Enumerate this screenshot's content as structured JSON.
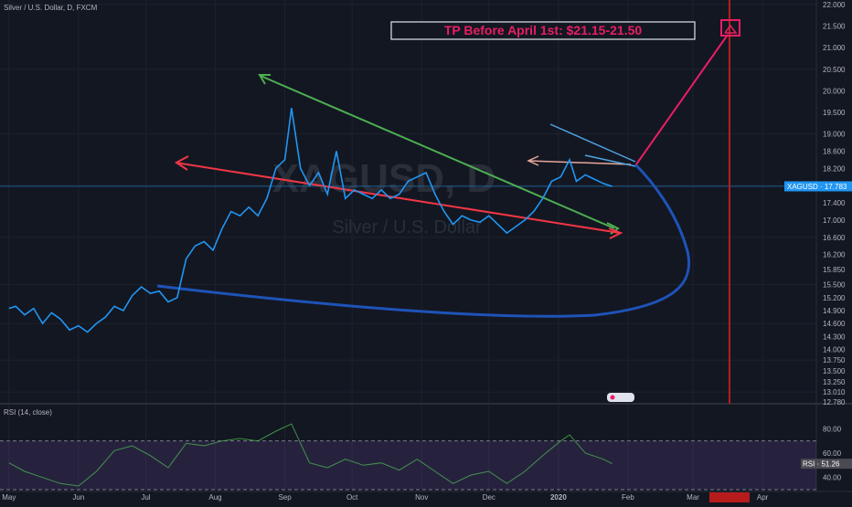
{
  "header": {
    "symbol_title": "Silver / U.S. Dollar, D, FXCM",
    "rsi_title": "RSI (14, close)"
  },
  "watermark": {
    "symbol": "XAGUSD, D",
    "name": "Silver / U.S. Dollar"
  },
  "annotation": {
    "tp_text": "TP Before April 1st: $21.15-21.50"
  },
  "colors": {
    "background": "#131722",
    "price_line": "#2196f3",
    "green_trendline": "#4caf50",
    "red_trendline": "#f23645",
    "projection_curve": "#1e53b8",
    "projection_arrow": "#e91e63",
    "rsi_line": "#4caf50",
    "rsi_band": "#7e57c2"
  },
  "chart_data": [
    {
      "type": "line",
      "title": "Silver / U.S. Dollar, D, FXCM",
      "xlabel": "",
      "ylabel": "",
      "ylim": [
        12.78,
        22.0
      ],
      "y_ticks": [
        22.0,
        21.5,
        21.0,
        20.5,
        20.0,
        19.5,
        19.0,
        18.6,
        18.2,
        17.8,
        17.4,
        17.0,
        16.6,
        16.2,
        15.85,
        15.5,
        15.2,
        14.9,
        14.6,
        14.3,
        14.0,
        13.75,
        13.5,
        13.25,
        13.01,
        12.78
      ],
      "y_tick_labels": [
        "22.000",
        "21.500",
        "21.000",
        "20.500",
        "20.000",
        "19.500",
        "19.000",
        "18.600",
        "18.200",
        "17.800",
        "17.400",
        "17.000",
        "16.600",
        "16.200",
        "15.850",
        "15.500",
        "15.200",
        "14.900",
        "14.600",
        "14.300",
        "14.000",
        "13.750",
        "13.500",
        "13.250",
        "13.010",
        "12.780"
      ],
      "x_tick_labels": [
        "May",
        "Jun",
        "Jul",
        "Aug",
        "Sep",
        "Oct",
        "Nov",
        "Dec",
        "2020",
        "Feb",
        "Mar",
        "16 Mar '20",
        "Apr"
      ],
      "current_price_label": "XAGUSD · 17.783",
      "current_price": 17.783,
      "series": [
        {
          "values": [
            {
              "x": "2019-05-01",
              "y": 14.95
            },
            {
              "x": "2019-05-04",
              "y": 15.0
            },
            {
              "x": "2019-05-08",
              "y": 14.8
            },
            {
              "x": "2019-05-12",
              "y": 14.95
            },
            {
              "x": "2019-05-16",
              "y": 14.6
            },
            {
              "x": "2019-05-20",
              "y": 14.85
            },
            {
              "x": "2019-05-24",
              "y": 14.7
            },
            {
              "x": "2019-05-28",
              "y": 14.45
            },
            {
              "x": "2019-06-01",
              "y": 14.55
            },
            {
              "x": "2019-06-05",
              "y": 14.4
            },
            {
              "x": "2019-06-09",
              "y": 14.6
            },
            {
              "x": "2019-06-13",
              "y": 14.75
            },
            {
              "x": "2019-06-17",
              "y": 15.0
            },
            {
              "x": "2019-06-21",
              "y": 14.9
            },
            {
              "x": "2019-06-25",
              "y": 15.25
            },
            {
              "x": "2019-06-29",
              "y": 15.45
            },
            {
              "x": "2019-07-03",
              "y": 15.3
            },
            {
              "x": "2019-07-07",
              "y": 15.35
            },
            {
              "x": "2019-07-11",
              "y": 15.1
            },
            {
              "x": "2019-07-15",
              "y": 15.2
            },
            {
              "x": "2019-07-19",
              "y": 16.1
            },
            {
              "x": "2019-07-23",
              "y": 16.4
            },
            {
              "x": "2019-07-27",
              "y": 16.5
            },
            {
              "x": "2019-07-31",
              "y": 16.3
            },
            {
              "x": "2019-08-04",
              "y": 16.8
            },
            {
              "x": "2019-08-08",
              "y": 17.2
            },
            {
              "x": "2019-08-12",
              "y": 17.1
            },
            {
              "x": "2019-08-16",
              "y": 17.3
            },
            {
              "x": "2019-08-20",
              "y": 17.1
            },
            {
              "x": "2019-08-24",
              "y": 17.5
            },
            {
              "x": "2019-08-28",
              "y": 18.2
            },
            {
              "x": "2019-09-01",
              "y": 18.4
            },
            {
              "x": "2019-09-04",
              "y": 19.6
            },
            {
              "x": "2019-09-08",
              "y": 18.2
            },
            {
              "x": "2019-09-12",
              "y": 17.8
            },
            {
              "x": "2019-09-16",
              "y": 18.1
            },
            {
              "x": "2019-09-20",
              "y": 17.6
            },
            {
              "x": "2019-09-24",
              "y": 18.6
            },
            {
              "x": "2019-09-28",
              "y": 17.5
            },
            {
              "x": "2019-10-02",
              "y": 17.7
            },
            {
              "x": "2019-10-06",
              "y": 17.6
            },
            {
              "x": "2019-10-10",
              "y": 17.5
            },
            {
              "x": "2019-10-14",
              "y": 17.7
            },
            {
              "x": "2019-10-18",
              "y": 17.5
            },
            {
              "x": "2019-10-22",
              "y": 17.6
            },
            {
              "x": "2019-10-26",
              "y": 17.9
            },
            {
              "x": "2019-10-30",
              "y": 18.0
            },
            {
              "x": "2019-11-03",
              "y": 18.1
            },
            {
              "x": "2019-11-07",
              "y": 17.6
            },
            {
              "x": "2019-11-11",
              "y": 17.2
            },
            {
              "x": "2019-11-15",
              "y": 16.9
            },
            {
              "x": "2019-11-19",
              "y": 17.1
            },
            {
              "x": "2019-11-23",
              "y": 17.0
            },
            {
              "x": "2019-11-27",
              "y": 16.95
            },
            {
              "x": "2019-12-01",
              "y": 17.1
            },
            {
              "x": "2019-12-05",
              "y": 16.9
            },
            {
              "x": "2019-12-09",
              "y": 16.7
            },
            {
              "x": "2019-12-13",
              "y": 16.85
            },
            {
              "x": "2019-12-17",
              "y": 17.0
            },
            {
              "x": "2019-12-21",
              "y": 17.2
            },
            {
              "x": "2019-12-25",
              "y": 17.5
            },
            {
              "x": "2019-12-29",
              "y": 17.9
            },
            {
              "x": "2020-01-02",
              "y": 18.0
            },
            {
              "x": "2020-01-06",
              "y": 18.4
            },
            {
              "x": "2020-01-09",
              "y": 17.9
            },
            {
              "x": "2020-01-13",
              "y": 18.05
            },
            {
              "x": "2020-01-17",
              "y": 17.95
            },
            {
              "x": "2020-01-21",
              "y": 17.85
            },
            {
              "x": "2020-01-25",
              "y": 17.78
            }
          ]
        }
      ]
    },
    {
      "type": "line",
      "title": "RSI (14, close)",
      "ylim": [
        30,
        90
      ],
      "y_tick_labels": [
        "80.00",
        "60.00",
        "40.00"
      ],
      "y_ticks": [
        80,
        60,
        40
      ],
      "band": [
        30,
        70
      ],
      "current_value_label": "RSI · 51.26",
      "current_value": 51.26,
      "series": [
        {
          "values": [
            {
              "x": "2019-05-01",
              "y": 52
            },
            {
              "x": "2019-05-08",
              "y": 45
            },
            {
              "x": "2019-05-16",
              "y": 40
            },
            {
              "x": "2019-05-24",
              "y": 35
            },
            {
              "x": "2019-06-01",
              "y": 33
            },
            {
              "x": "2019-06-09",
              "y": 45
            },
            {
              "x": "2019-06-17",
              "y": 62
            },
            {
              "x": "2019-06-25",
              "y": 66
            },
            {
              "x": "2019-07-03",
              "y": 58
            },
            {
              "x": "2019-07-11",
              "y": 48
            },
            {
              "x": "2019-07-19",
              "y": 68
            },
            {
              "x": "2019-07-27",
              "y": 66
            },
            {
              "x": "2019-08-04",
              "y": 70
            },
            {
              "x": "2019-08-12",
              "y": 72
            },
            {
              "x": "2019-08-20",
              "y": 70
            },
            {
              "x": "2019-08-28",
              "y": 78
            },
            {
              "x": "2019-09-04",
              "y": 84
            },
            {
              "x": "2019-09-12",
              "y": 52
            },
            {
              "x": "2019-09-20",
              "y": 48
            },
            {
              "x": "2019-09-28",
              "y": 55
            },
            {
              "x": "2019-10-06",
              "y": 50
            },
            {
              "x": "2019-10-14",
              "y": 52
            },
            {
              "x": "2019-10-22",
              "y": 46
            },
            {
              "x": "2019-10-30",
              "y": 55
            },
            {
              "x": "2019-11-07",
              "y": 45
            },
            {
              "x": "2019-11-15",
              "y": 35
            },
            {
              "x": "2019-11-23",
              "y": 42
            },
            {
              "x": "2019-12-01",
              "y": 45
            },
            {
              "x": "2019-12-09",
              "y": 35
            },
            {
              "x": "2019-12-17",
              "y": 45
            },
            {
              "x": "2019-12-25",
              "y": 58
            },
            {
              "x": "2020-01-02",
              "y": 70
            },
            {
              "x": "2020-01-06",
              "y": 75
            },
            {
              "x": "2020-01-13",
              "y": 60
            },
            {
              "x": "2020-01-21",
              "y": 55
            },
            {
              "x": "2020-01-25",
              "y": 51.26
            }
          ]
        }
      ]
    }
  ]
}
